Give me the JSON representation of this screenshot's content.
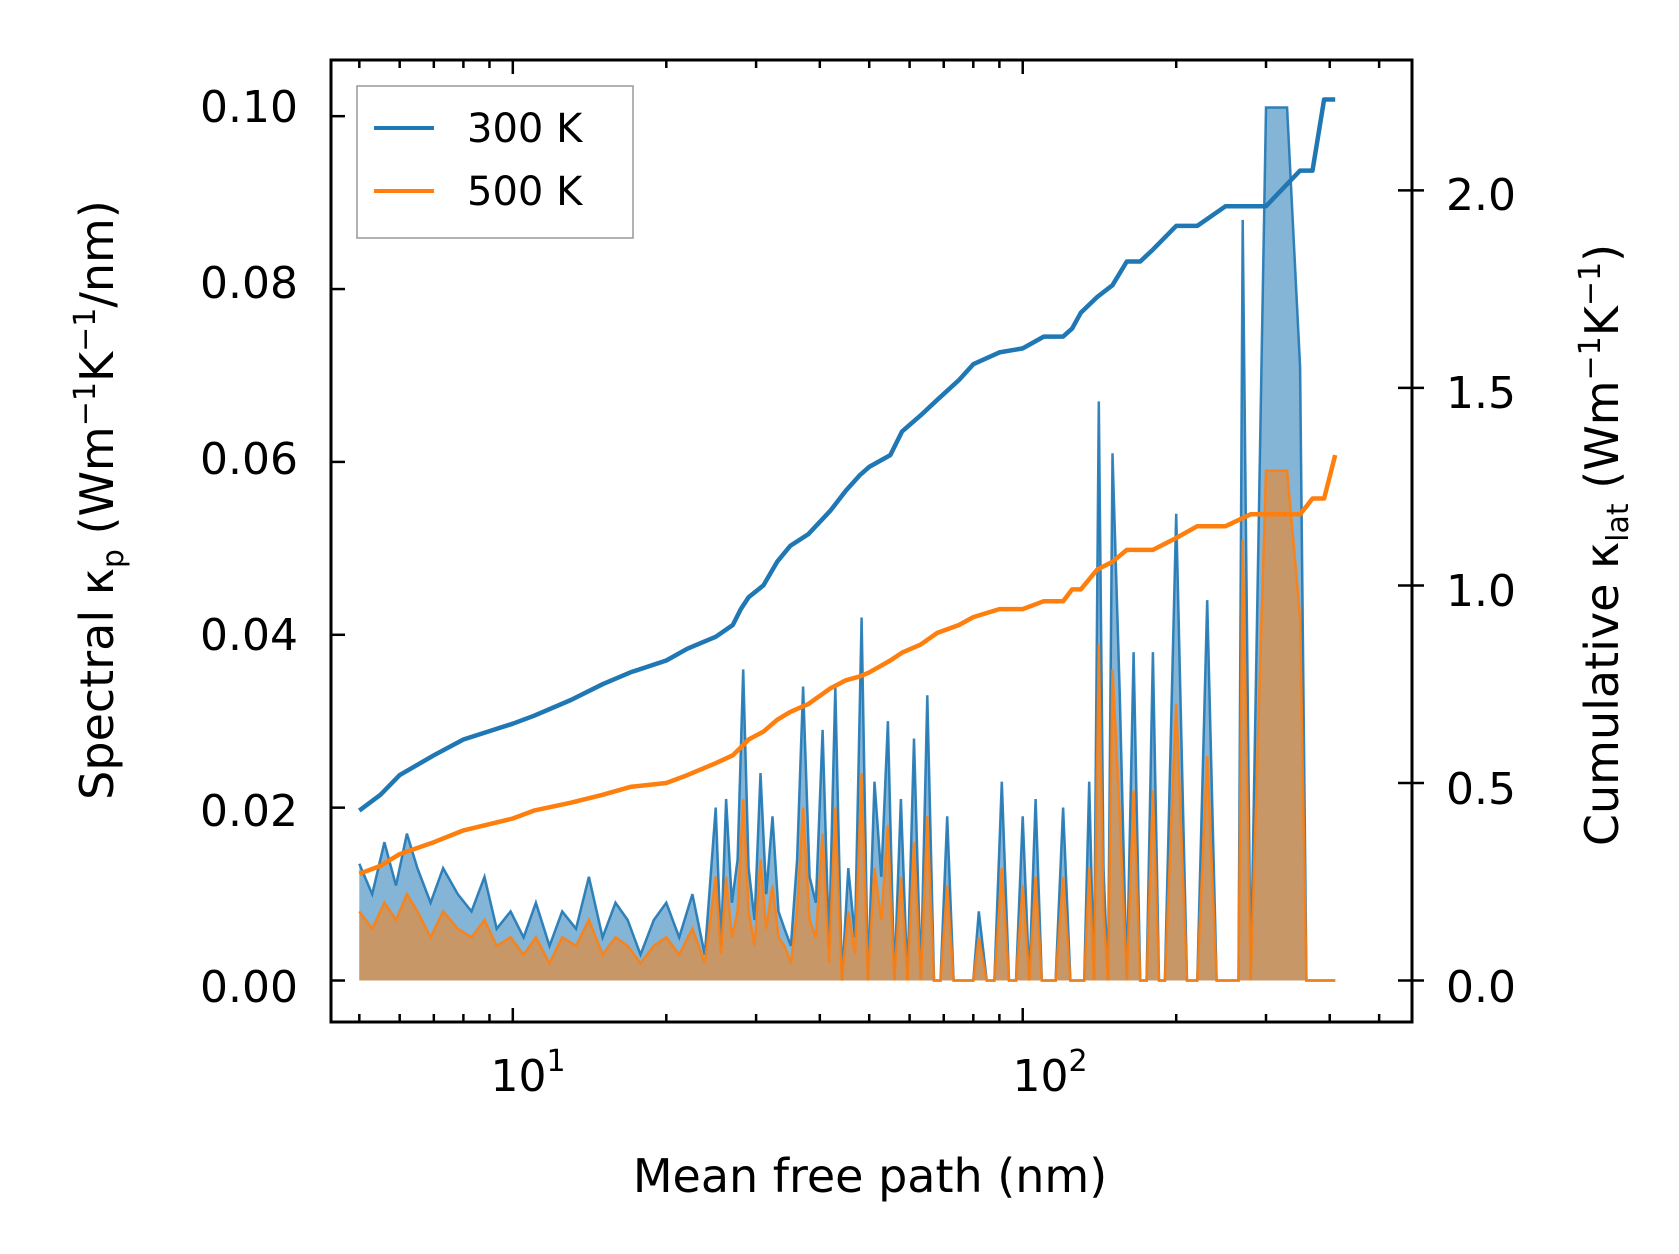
{
  "chart_data": {
    "type": "line",
    "title": "",
    "xlabel": "Mean free path (nm)",
    "xscale": "log",
    "xlim": [
      4.4,
      580
    ],
    "x_ticks": [
      {
        "value": 10,
        "base": "10",
        "exp": "1"
      },
      {
        "value": 100,
        "base": "10",
        "exp": "2"
      }
    ],
    "ylabel_left": {
      "pre": "Spectral κ",
      "sub": "p",
      "mid": " (Wm",
      "sup1": "−1",
      "k": "K",
      "sup2": "−1",
      "post": "/nm)"
    },
    "ylim_left": [
      -0.0048,
      0.1065
    ],
    "yticks_left": [
      "0.00",
      "0.02",
      "0.04",
      "0.06",
      "0.08",
      "0.10"
    ],
    "ylabel_right": {
      "pre": "Cumulative κ",
      "sub": "lat",
      "mid": " (Wm",
      "sup1": "−1",
      "k": "K",
      "sup2": "−1",
      "post": ")"
    },
    "ylim_right": [
      -0.105,
      2.33
    ],
    "yticks_right": [
      "0.0",
      "0.5",
      "1.0",
      "1.5",
      "2.0"
    ],
    "legend_position": "top-left",
    "series": [
      {
        "name": "300 K",
        "color": "#1f77b4",
        "cumulative": {
          "x": [
            5,
            5.5,
            6,
            7,
            8,
            10,
            11,
            13,
            15,
            17,
            20,
            22,
            25,
            27,
            28,
            29,
            31,
            33,
            35,
            38,
            42,
            45,
            48,
            50,
            55,
            58,
            63,
            68,
            75,
            80,
            90,
            100,
            110,
            120,
            125,
            130,
            140,
            150,
            160,
            170,
            180,
            200,
            220,
            250,
            280,
            300,
            350,
            370,
            390,
            410
          ],
          "y": [
            0.43,
            0.47,
            0.52,
            0.57,
            0.61,
            0.65,
            0.67,
            0.71,
            0.75,
            0.78,
            0.81,
            0.84,
            0.87,
            0.9,
            0.94,
            0.97,
            1.0,
            1.06,
            1.1,
            1.13,
            1.19,
            1.24,
            1.28,
            1.3,
            1.33,
            1.39,
            1.43,
            1.47,
            1.52,
            1.56,
            1.59,
            1.6,
            1.63,
            1.63,
            1.65,
            1.69,
            1.73,
            1.76,
            1.82,
            1.82,
            1.85,
            1.91,
            1.91,
            1.96,
            1.96,
            1.96,
            2.05,
            2.05,
            2.23,
            2.23
          ]
        },
        "spectral": {
          "x": [
            5,
            5.3,
            5.6,
            5.9,
            6.2,
            6.5,
            6.9,
            7.3,
            7.8,
            8.3,
            8.8,
            9.3,
            9.9,
            10.5,
            11.1,
            11.8,
            12.5,
            13.3,
            14.1,
            15.0,
            15.9,
            16.8,
            17.8,
            18.9,
            20,
            21.2,
            22.5,
            23.8,
            25,
            25.6,
            26.2,
            26.9,
            27.6,
            28.3,
            29,
            29.8,
            30.6,
            31.4,
            32.3,
            33.2,
            34.1,
            35.1,
            36.1,
            37.1,
            38.2,
            39.3,
            40.5,
            41.7,
            42.9,
            44.2,
            45.5,
            46.9,
            48.3,
            49.7,
            51.2,
            52.8,
            54.4,
            56,
            57.7,
            59.4,
            61.2,
            63.1,
            65,
            67,
            69,
            71.1,
            73.2,
            75.5,
            77.8,
            80,
            82,
            85,
            88,
            91,
            94,
            97,
            100,
            103,
            106,
            109,
            112,
            116,
            120,
            124,
            128,
            132,
            135,
            138,
            141,
            144,
            147,
            150,
            155,
            160,
            165,
            170,
            175,
            180,
            185,
            190,
            200,
            210,
            215,
            220,
            230,
            240,
            250,
            260,
            265,
            270,
            280,
            300,
            330,
            350,
            360,
            370,
            380,
            390,
            400,
            410
          ],
          "y_300": [
            0.0135,
            0.01,
            0.016,
            0.011,
            0.017,
            0.013,
            0.009,
            0.013,
            0.01,
            0.008,
            0.012,
            0.006,
            0.008,
            0.005,
            0.009,
            0.004,
            0.008,
            0.006,
            0.012,
            0.005,
            0.009,
            0.007,
            0.003,
            0.007,
            0.009,
            0.005,
            0.01,
            0.003,
            0.02,
            0.004,
            0.021,
            0.009,
            0.014,
            0.036,
            0.013,
            0.007,
            0.024,
            0.01,
            0.019,
            0.008,
            0.006,
            0.004,
            0.014,
            0.034,
            0.012,
            0.009,
            0.029,
            0.004,
            0.034,
            0.0,
            0.013,
            0.005,
            0.042,
            0.0,
            0.023,
            0.012,
            0.03,
            0.0,
            0.021,
            0.0,
            0.028,
            0.0,
            0.033,
            0.0,
            0.0,
            0.019,
            0.0,
            0.0,
            0.0,
            0.0,
            0.008,
            0.0,
            0.0,
            0.023,
            0.0,
            0.0,
            0.019,
            0.0,
            0.021,
            0.0,
            0.0,
            0.0,
            0.02,
            0.0,
            0.0,
            0.0,
            0.023,
            0.0,
            0.067,
            0.013,
            0.0,
            0.061,
            0.033,
            0.0,
            0.038,
            0.0,
            0.0,
            0.038,
            0.0,
            0.0,
            0.054,
            0.0,
            0.0,
            0.0,
            0.044,
            0.0,
            0.0,
            0.0,
            0.0,
            0.088,
            0.0,
            0.101,
            0.101,
            0.071,
            0.0,
            0.0,
            0.0,
            0.0,
            0.0,
            0.0
          ]
        }
      },
      {
        "name": "500 K",
        "color": "#ff7f0e",
        "cumulative": {
          "x": [
            5,
            5.5,
            6,
            7,
            8,
            10,
            11,
            13,
            15,
            17,
            20,
            22,
            25,
            27,
            28,
            29,
            31,
            33,
            35,
            38,
            42,
            45,
            48,
            50,
            55,
            58,
            63,
            68,
            75,
            80,
            90,
            100,
            110,
            120,
            125,
            130,
            140,
            150,
            160,
            170,
            180,
            200,
            220,
            250,
            280,
            300,
            350,
            370,
            390,
            410
          ],
          "y": [
            0.27,
            0.29,
            0.32,
            0.35,
            0.38,
            0.41,
            0.43,
            0.45,
            0.47,
            0.49,
            0.5,
            0.52,
            0.55,
            0.57,
            0.59,
            0.61,
            0.63,
            0.66,
            0.68,
            0.7,
            0.74,
            0.76,
            0.77,
            0.78,
            0.81,
            0.83,
            0.85,
            0.88,
            0.9,
            0.92,
            0.94,
            0.94,
            0.96,
            0.96,
            0.99,
            0.99,
            1.04,
            1.06,
            1.09,
            1.09,
            1.09,
            1.12,
            1.15,
            1.15,
            1.18,
            1.18,
            1.18,
            1.22,
            1.22,
            1.33
          ]
        },
        "spectral": {
          "x": [
            5,
            5.3,
            5.6,
            5.9,
            6.2,
            6.5,
            6.9,
            7.3,
            7.8,
            8.3,
            8.8,
            9.3,
            9.9,
            10.5,
            11.1,
            11.8,
            12.5,
            13.3,
            14.1,
            15.0,
            15.9,
            16.8,
            17.8,
            18.9,
            20,
            21.2,
            22.5,
            23.8,
            25,
            25.6,
            26.2,
            26.9,
            27.6,
            28.3,
            29,
            29.8,
            30.6,
            31.4,
            32.3,
            33.2,
            34.1,
            35.1,
            36.1,
            37.1,
            38.2,
            39.3,
            40.5,
            41.7,
            42.9,
            44.2,
            45.5,
            46.9,
            48.3,
            49.7,
            51.2,
            52.8,
            54.4,
            56,
            57.7,
            59.4,
            61.2,
            63.1,
            65,
            67,
            69,
            71.1,
            73.2,
            75.5,
            77.8,
            80,
            82,
            85,
            88,
            91,
            94,
            97,
            100,
            103,
            106,
            109,
            112,
            116,
            120,
            124,
            128,
            132,
            135,
            138,
            141,
            144,
            147,
            150,
            155,
            160,
            165,
            170,
            175,
            180,
            185,
            190,
            200,
            210,
            215,
            220,
            230,
            240,
            250,
            260,
            265,
            270,
            280,
            300,
            330,
            350,
            360,
            370,
            380,
            390,
            400,
            410
          ],
          "y_500": [
            0.008,
            0.006,
            0.009,
            0.007,
            0.01,
            0.008,
            0.005,
            0.008,
            0.006,
            0.005,
            0.007,
            0.004,
            0.005,
            0.003,
            0.005,
            0.002,
            0.005,
            0.004,
            0.007,
            0.003,
            0.005,
            0.004,
            0.002,
            0.004,
            0.005,
            0.003,
            0.006,
            0.002,
            0.012,
            0.003,
            0.012,
            0.005,
            0.008,
            0.021,
            0.008,
            0.004,
            0.014,
            0.006,
            0.011,
            0.005,
            0.004,
            0.002,
            0.008,
            0.02,
            0.007,
            0.005,
            0.017,
            0.002,
            0.02,
            0.0,
            0.008,
            0.003,
            0.024,
            0.0,
            0.013,
            0.007,
            0.018,
            0.0,
            0.012,
            0.0,
            0.016,
            0.0,
            0.019,
            0.0,
            0.0,
            0.011,
            0.0,
            0.0,
            0.0,
            0.0,
            0.005,
            0.0,
            0.0,
            0.013,
            0.0,
            0.0,
            0.011,
            0.0,
            0.012,
            0.0,
            0.0,
            0.0,
            0.012,
            0.0,
            0.0,
            0.0,
            0.013,
            0.0,
            0.039,
            0.008,
            0.0,
            0.036,
            0.019,
            0.0,
            0.022,
            0.0,
            0.0,
            0.022,
            0.0,
            0.0,
            0.032,
            0.0,
            0.0,
            0.0,
            0.026,
            0.0,
            0.0,
            0.0,
            0.0,
            0.051,
            0.0,
            0.059,
            0.059,
            0.042,
            0.0,
            0.0,
            0.0,
            0.0,
            0.0,
            0.0
          ]
        }
      }
    ]
  }
}
